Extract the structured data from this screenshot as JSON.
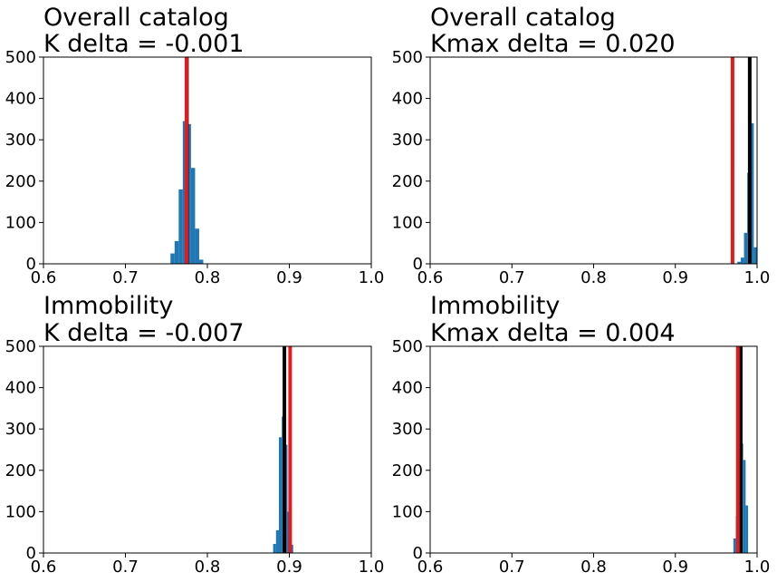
{
  "chart_data": [
    {
      "type": "bar",
      "title_line1": "Overall catalog",
      "title_line2": "K delta = -0.001",
      "xlim": [
        0.6,
        1.0
      ],
      "ylim": [
        0,
        500
      ],
      "xticks": [
        "0.6",
        "0.7",
        "0.8",
        "0.9",
        "1.0"
      ],
      "yticks": [
        "0",
        "100",
        "200",
        "300",
        "400",
        "500"
      ],
      "grid": false,
      "histogram": {
        "bin_width": 0.005,
        "bins": [
          {
            "x": 0.7575,
            "count": 25
          },
          {
            "x": 0.7625,
            "count": 55
          },
          {
            "x": 0.7675,
            "count": 180
          },
          {
            "x": 0.7725,
            "count": 345
          },
          {
            "x": 0.7775,
            "count": 338
          },
          {
            "x": 0.7825,
            "count": 232
          },
          {
            "x": 0.7875,
            "count": 85
          },
          {
            "x": 0.7925,
            "count": 10
          }
        ]
      },
      "reference_lines": [
        {
          "x": 0.775,
          "color": "#000000"
        },
        {
          "x": 0.7745,
          "color": "#e41a1c"
        }
      ]
    },
    {
      "type": "bar",
      "title_line1": "Overall catalog",
      "title_line2": "Kmax delta = 0.020",
      "xlim": [
        0.6,
        1.0
      ],
      "ylim": [
        0,
        500
      ],
      "xticks": [
        "0.6",
        "0.7",
        "0.8",
        "0.9",
        "1.0"
      ],
      "yticks": [
        "0",
        "100",
        "200",
        "300",
        "400",
        "500"
      ],
      "grid": false,
      "histogram": {
        "bin_width": 0.004,
        "bins": [
          {
            "x": 0.978,
            "count": 5
          },
          {
            "x": 0.982,
            "count": 15
          },
          {
            "x": 0.986,
            "count": 75
          },
          {
            "x": 0.99,
            "count": 220
          },
          {
            "x": 0.994,
            "count": 340
          },
          {
            "x": 0.998,
            "count": 40
          }
        ]
      },
      "reference_lines": [
        {
          "x": 0.97,
          "color": "#e41a1c"
        },
        {
          "x": 0.991,
          "color": "#000000"
        }
      ]
    },
    {
      "type": "bar",
      "title_line1": "Immobility",
      "title_line2": "K delta = -0.007",
      "xlim": [
        0.6,
        1.0
      ],
      "ylim": [
        0,
        500
      ],
      "xticks": [
        "0.6",
        "0.7",
        "0.8",
        "0.9",
        "1.0"
      ],
      "yticks": [
        "0",
        "100",
        "200",
        "300",
        "400",
        "500"
      ],
      "grid": false,
      "histogram": {
        "bin_width": 0.0035,
        "bins": [
          {
            "x": 0.882,
            "count": 22
          },
          {
            "x": 0.8855,
            "count": 55
          },
          {
            "x": 0.889,
            "count": 280
          },
          {
            "x": 0.8925,
            "count": 330
          },
          {
            "x": 0.896,
            "count": 262
          },
          {
            "x": 0.8995,
            "count": 100
          },
          {
            "x": 0.903,
            "count": 20
          }
        ]
      },
      "reference_lines": [
        {
          "x": 0.894,
          "color": "#000000"
        },
        {
          "x": 0.901,
          "color": "#e41a1c"
        }
      ]
    },
    {
      "type": "bar",
      "title_line1": "Immobility",
      "title_line2": "Kmax delta = 0.004",
      "xlim": [
        0.6,
        1.0
      ],
      "ylim": [
        0,
        500
      ],
      "xticks": [
        "0.6",
        "0.7",
        "0.8",
        "0.9",
        "1.0"
      ],
      "yticks": [
        "0",
        "100",
        "200",
        "300",
        "400",
        "500"
      ],
      "grid": false,
      "histogram": {
        "bin_width": 0.003,
        "bins": [
          {
            "x": 0.9725,
            "count": 35
          },
          {
            "x": 0.9755,
            "count": 90
          },
          {
            "x": 0.9785,
            "count": 180
          },
          {
            "x": 0.9815,
            "count": 265
          },
          {
            "x": 0.9845,
            "count": 225
          },
          {
            "x": 0.9875,
            "count": 115
          }
        ]
      },
      "reference_lines": [
        {
          "x": 0.98,
          "color": "#000000"
        },
        {
          "x": 0.9765,
          "color": "#e41a1c"
        }
      ]
    }
  ],
  "colors": {
    "bars": "#1f77b4",
    "reference_black": "#000000",
    "reference_red": "#e41a1c"
  }
}
